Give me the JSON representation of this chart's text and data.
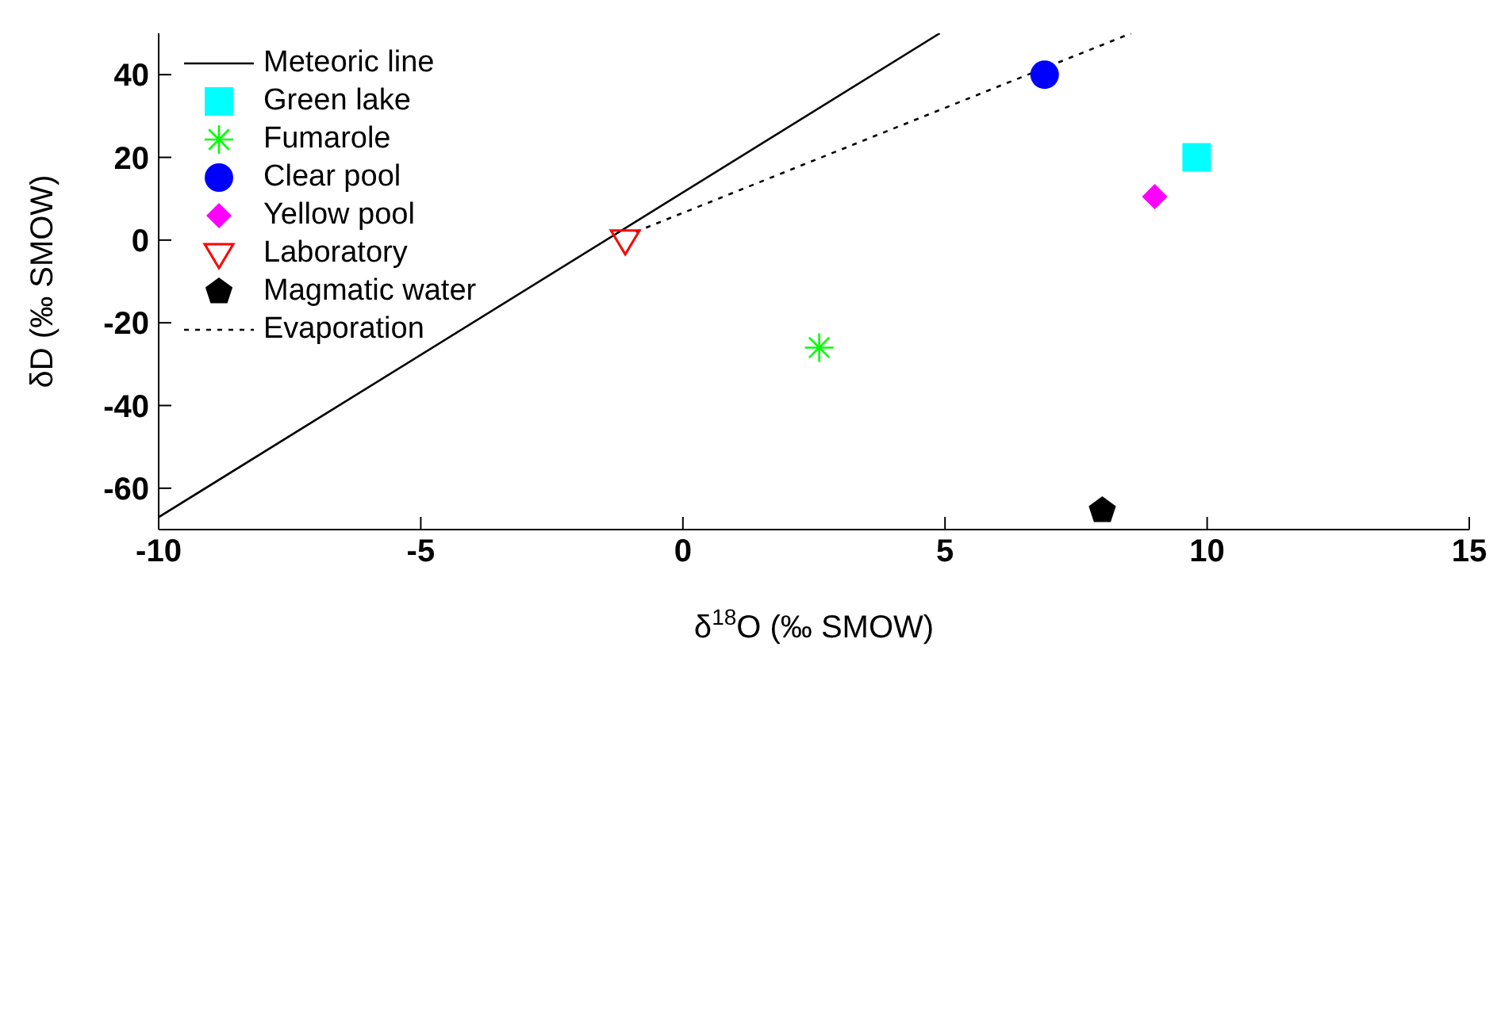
{
  "chart_data": {
    "type": "scatter",
    "xlabel": "δ$^{18}$O (‰ SMOW)",
    "ylabel": "δD (‰ SMOW)",
    "xlim": [
      -10,
      15
    ],
    "ylim": [
      -70,
      50
    ],
    "xticks": [
      -10,
      -5,
      0,
      5,
      10,
      15
    ],
    "yticks": [
      -60,
      -40,
      -20,
      0,
      20,
      40
    ],
    "grid": false,
    "legend": "top left",
    "series": [
      {
        "name": "Meteoric line",
        "type": "line",
        "color": "#000000",
        "line_style": "solid",
        "x": [
          -10,
          4.9
        ],
        "values": [
          -67,
          50
        ]
      },
      {
        "name": "Green lake",
        "color": "#00ffff",
        "marker": "square",
        "x": [
          9.8
        ],
        "values": [
          20
        ]
      },
      {
        "name": "Fumarole",
        "color": "#00ff00",
        "marker": "cross",
        "x": [
          2.6
        ],
        "values": [
          -26
        ]
      },
      {
        "name": "Clear pool",
        "color": "#0000ff",
        "marker": "circle",
        "x": [
          6.9
        ],
        "values": [
          40
        ]
      },
      {
        "name": "Yellow pool",
        "color": "#ff00ff",
        "marker": "diamond",
        "x": [
          9.0
        ],
        "values": [
          10.5
        ]
      },
      {
        "name": "Laboratory",
        "color": "#ff0000",
        "marker": "triangle",
        "x": [
          -1.1
        ],
        "values": [
          0
        ]
      },
      {
        "name": "Magmatic water",
        "color": "#000000",
        "x": [
          8
        ],
        "values": [
          -65.4
        ]
      },
      {
        "name": "Evaporation",
        "type": "line",
        "color": "#000000",
        "line_style": "dotted",
        "x": [
          -0.9,
          8.55
        ],
        "values": [
          2,
          50
        ]
      }
    ]
  }
}
